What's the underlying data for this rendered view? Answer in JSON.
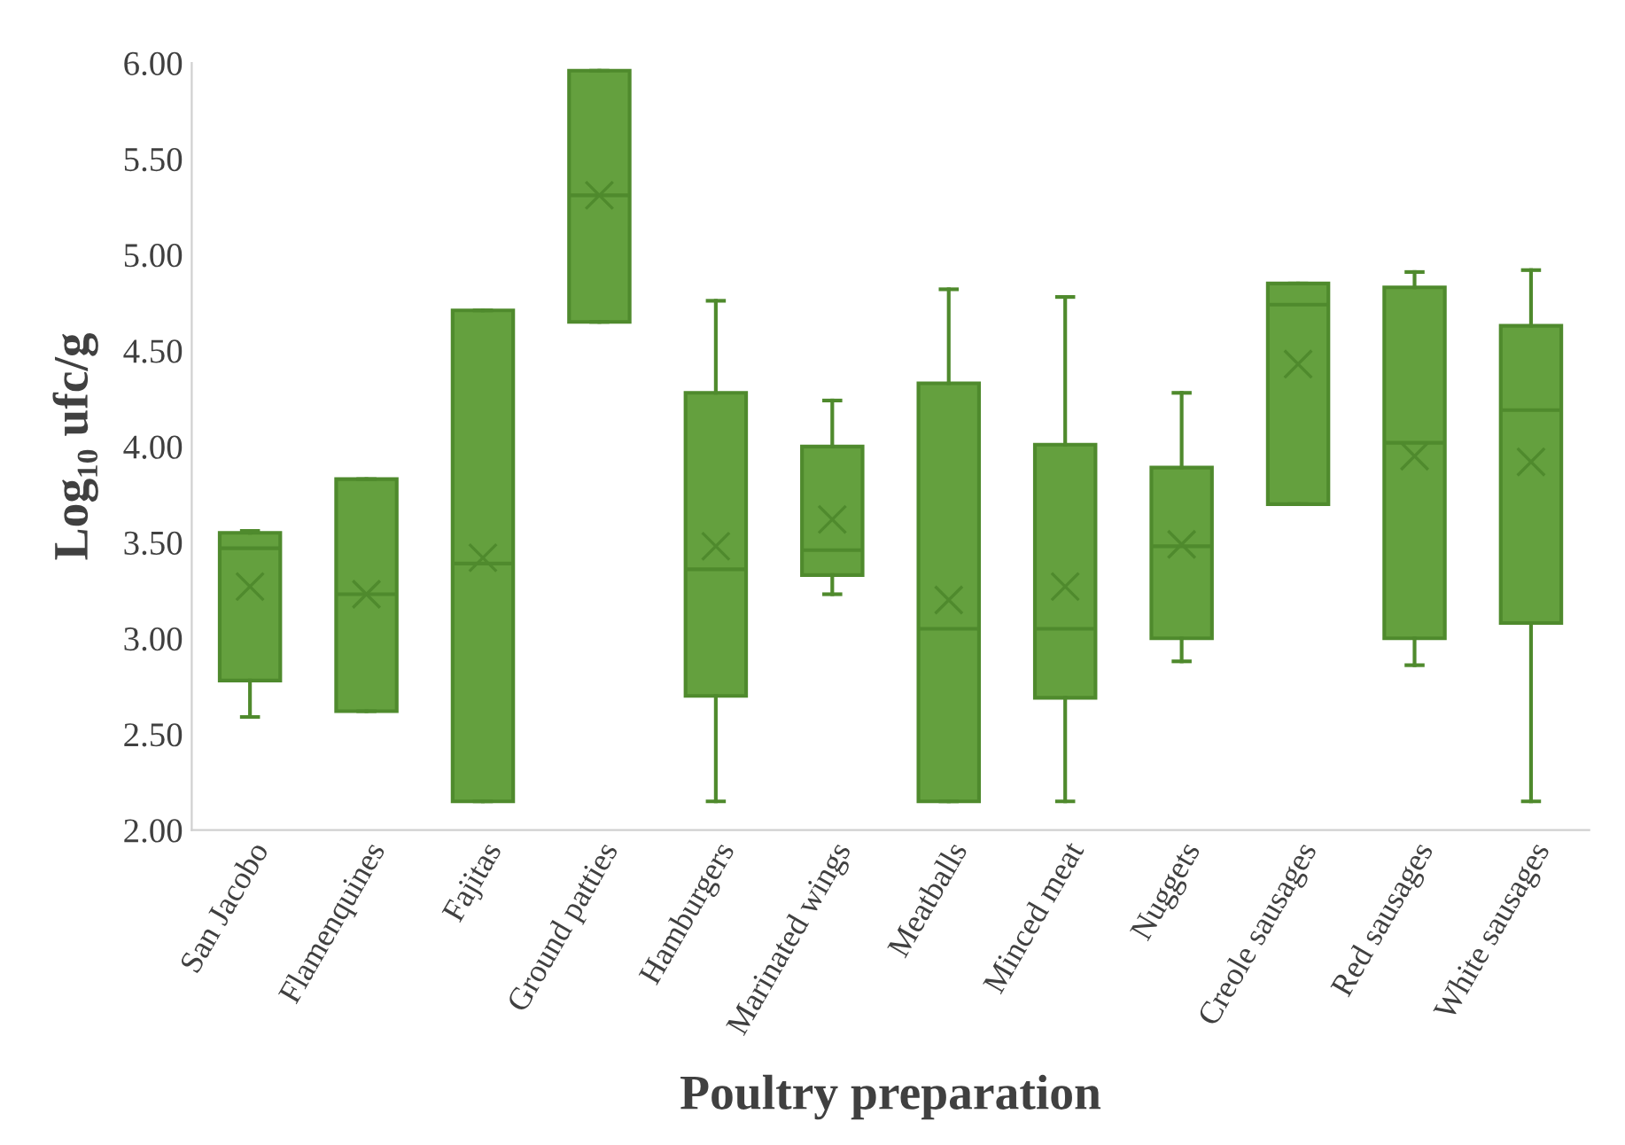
{
  "chart_data": {
    "type": "box",
    "xlabel": "Poultry preparation",
    "ylabel": "Log₁₀ ufc/g",
    "categories": [
      "San Jacobo",
      "Flamenquines",
      "Fajitas",
      "Ground patties",
      "Hamburgers",
      "Marinated wings",
      "Meatballs",
      "Minced meat",
      "Nuggets",
      "Creole sausages",
      "Red sausages",
      "White sausages"
    ],
    "color": "#64a03e",
    "marker": "cross",
    "boxes": [
      {
        "low": 2.59,
        "q1": 2.78,
        "median": 3.47,
        "q3": 3.55,
        "high": 3.56,
        "mean": 3.27
      },
      {
        "low": 2.62,
        "q1": 2.62,
        "median": 3.23,
        "q3": 3.83,
        "high": 3.83,
        "mean": 3.23
      },
      {
        "low": 2.15,
        "q1": 2.15,
        "median": 3.39,
        "q3": 4.71,
        "high": 4.71,
        "mean": 3.42
      },
      {
        "low": 4.65,
        "q1": 4.65,
        "median": 5.31,
        "q3": 5.96,
        "high": 5.96,
        "mean": 5.31
      },
      {
        "low": 2.15,
        "q1": 2.7,
        "median": 3.36,
        "q3": 4.28,
        "high": 4.76,
        "mean": 3.48
      },
      {
        "low": 3.23,
        "q1": 3.33,
        "median": 3.46,
        "q3": 4.0,
        "high": 4.24,
        "mean": 3.62
      },
      {
        "low": 2.15,
        "q1": 2.15,
        "median": 3.05,
        "q3": 4.33,
        "high": 4.82,
        "mean": 3.2
      },
      {
        "low": 2.15,
        "q1": 2.69,
        "median": 3.05,
        "q3": 4.01,
        "high": 4.78,
        "mean": 3.27
      },
      {
        "low": 2.88,
        "q1": 3.0,
        "median": 3.48,
        "q3": 3.89,
        "high": 4.28,
        "mean": 3.49
      },
      {
        "low": 3.7,
        "q1": 3.7,
        "median": 4.74,
        "q3": 4.85,
        "high": 4.85,
        "mean": 4.43
      },
      {
        "low": 2.86,
        "q1": 3.0,
        "median": 4.02,
        "q3": 4.83,
        "high": 4.91,
        "mean": 3.95
      },
      {
        "low": 2.15,
        "q1": 3.08,
        "median": 4.19,
        "q3": 4.63,
        "high": 4.92,
        "mean": 3.92
      }
    ],
    "ylim": [
      2.0,
      6.0
    ],
    "yticks": [
      {
        "value": 2.0,
        "label": "2.00"
      },
      {
        "value": 2.5,
        "label": "2.50"
      },
      {
        "value": 3.0,
        "label": "3.00"
      },
      {
        "value": 3.5,
        "label": "3.50"
      },
      {
        "value": 4.0,
        "label": "4.00"
      },
      {
        "value": 4.5,
        "label": "4.50"
      },
      {
        "value": 5.0,
        "label": "5.00"
      },
      {
        "value": 5.5,
        "label": "5.50"
      },
      {
        "value": 6.0,
        "label": "6.00"
      }
    ],
    "grid": false,
    "legend": false
  }
}
